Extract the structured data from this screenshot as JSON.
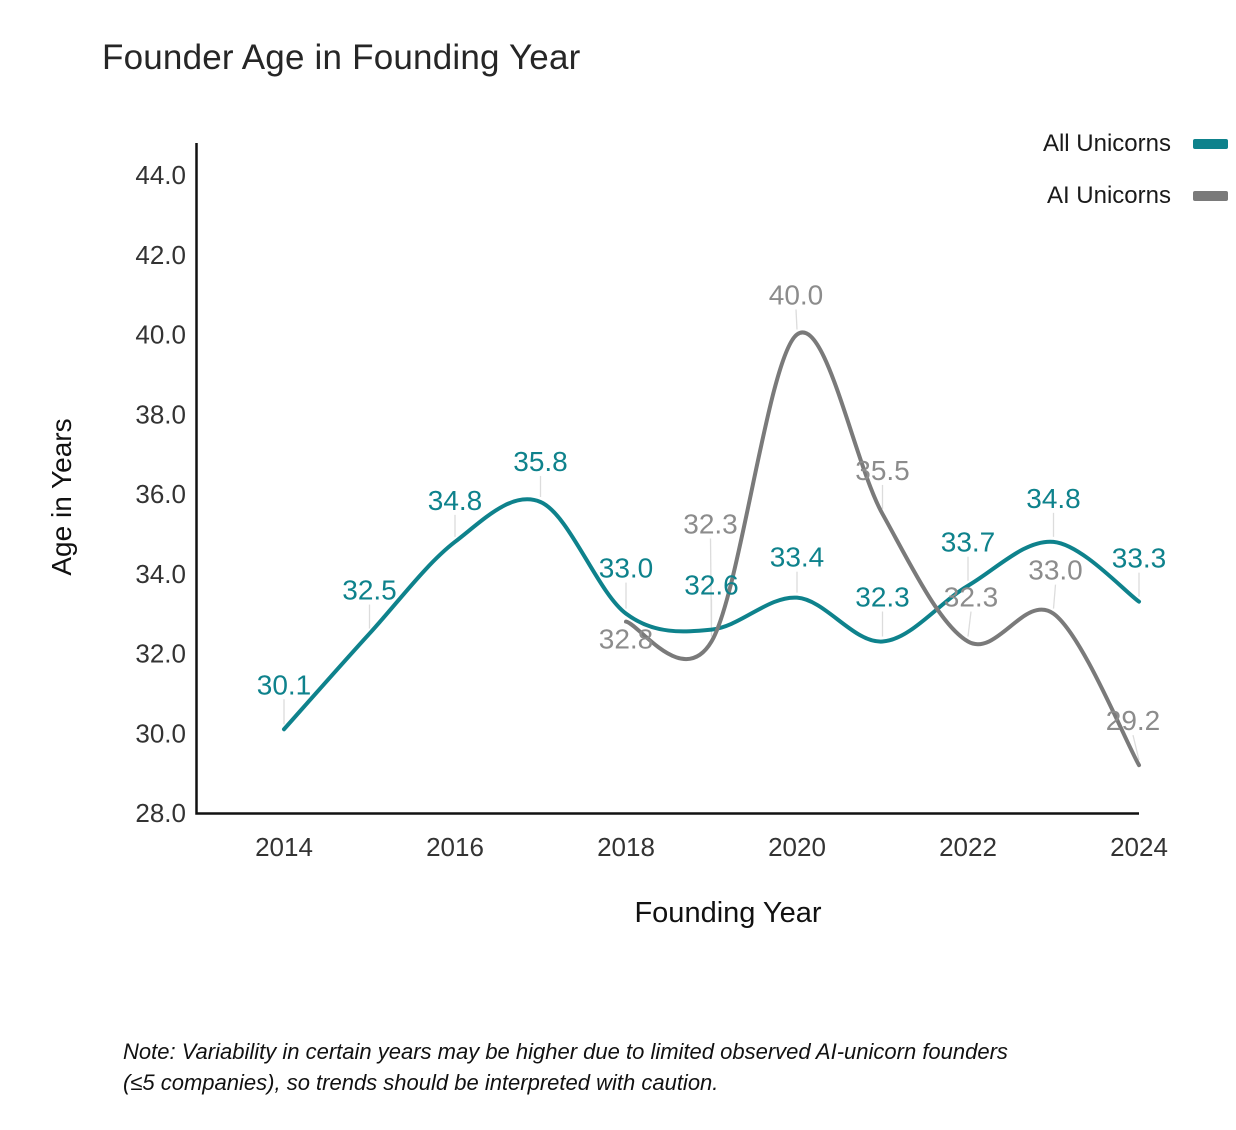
{
  "page": {
    "title": "Founder Age in Founding Year",
    "note_line1": "Note: Variability in certain years may be higher due to limited observed AI-unicorn founders",
    "note_line2": "(≤5 companies), so trends should be interpreted with caution."
  },
  "legend": {
    "items": [
      {
        "label": "All Unicorns",
        "color": "#0e828c"
      },
      {
        "label": "AI Unicorns",
        "color": "#7a7a7a"
      }
    ]
  },
  "chart_data": {
    "type": "line",
    "title": "Founder Age in Founding Year",
    "xlabel": "Founding Year",
    "ylabel": "Age in Years",
    "line_shape": "spline",
    "grid": false,
    "data_labels": true,
    "legend_position": "top-right",
    "xlim": [
      2013,
      2024.2
    ],
    "ylim": [
      28.0,
      44.0
    ],
    "x_tick_labels": [
      "2014",
      "2016",
      "2018",
      "2020",
      "2022",
      "2024"
    ],
    "x_tick_years": [
      2014,
      2016,
      2018,
      2020,
      2022,
      2024
    ],
    "y_tick_labels": [
      "44.0",
      "42.0",
      "40.0",
      "38.0",
      "36.0",
      "34.0",
      "32.0",
      "30.0",
      "28.0"
    ],
    "y_tick_values": [
      44,
      42,
      40,
      38,
      36,
      34,
      32,
      30,
      28
    ],
    "series": [
      {
        "name": "All Unicorns",
        "color": "#0e828c",
        "label_color": "#0e828c",
        "x": [
          2014,
          2015,
          2016,
          2017,
          2018,
          2019,
          2020,
          2021,
          2022,
          2023,
          2024
        ],
        "values": [
          30.1,
          32.5,
          34.8,
          35.8,
          33.0,
          32.6,
          33.4,
          32.3,
          33.7,
          34.8,
          33.3
        ],
        "label_offsets": [
          [
            0,
            -45
          ],
          [
            0,
            -44
          ],
          [
            0,
            -42
          ],
          [
            0,
            -41
          ],
          [
            0,
            -46
          ],
          [
            0,
            -45
          ],
          [
            0,
            -41
          ],
          [
            0,
            -45
          ],
          [
            0,
            -44
          ],
          [
            0,
            -44
          ],
          [
            0,
            -44
          ]
        ]
      },
      {
        "name": "AI Unicorns",
        "color": "#7a7a7a",
        "label_color": "#8c8c8c",
        "x": [
          2018,
          2019,
          2020,
          2021,
          2022,
          2023,
          2024
        ],
        "values": [
          32.8,
          32.3,
          40.0,
          35.5,
          32.3,
          33.0,
          29.2
        ],
        "label_offsets": [
          [
            0,
            17
          ],
          [
            -1,
            -118
          ],
          [
            -1,
            -40
          ],
          [
            0,
            -44
          ],
          [
            3,
            -45
          ],
          [
            2,
            -44
          ],
          [
            -6,
            -45
          ]
        ]
      }
    ],
    "style": {
      "axis_color": "#111111",
      "tick_label_color": "#333333",
      "leader_line_color": "#dcdcdc",
      "background": "#ffffff"
    }
  }
}
